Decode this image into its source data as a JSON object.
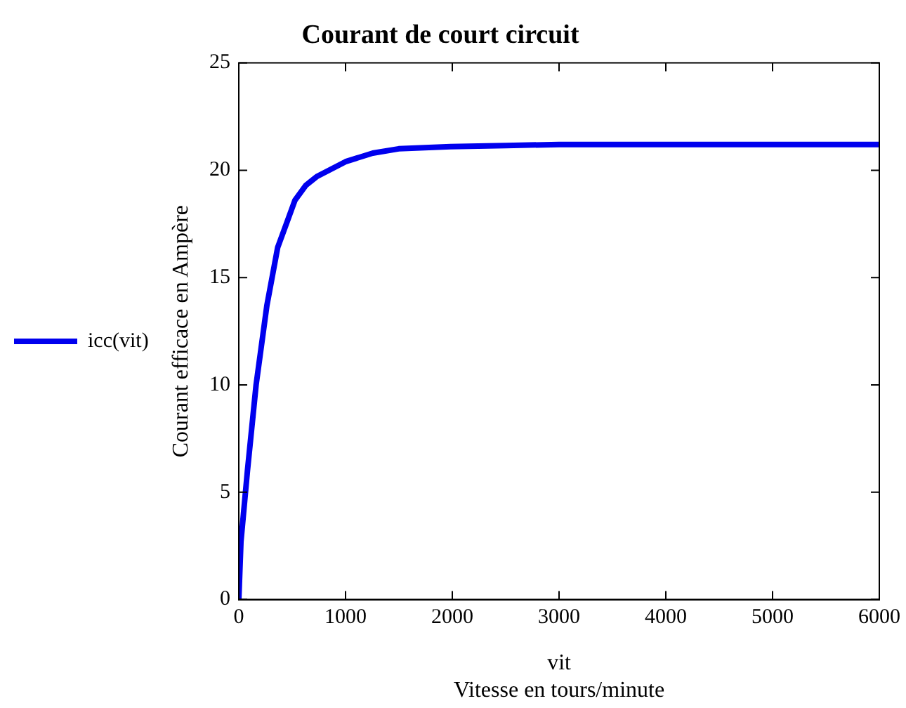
{
  "chart_data": {
    "type": "line",
    "title": "Courant de court circuit",
    "xlabel": "vit",
    "ylabel": "Courant efficace en Ampère",
    "annotations": [
      "Vitesse en tours/minute"
    ],
    "x": [
      0,
      20,
      81,
      162,
      263,
      364,
      445,
      526,
      628,
      729,
      1000,
      1255,
      1498,
      1984,
      2500,
      3000,
      4000,
      5000,
      6000
    ],
    "series": [
      {
        "name": "icc(vit)",
        "color": "#0000ee",
        "values": [
          0,
          2.7,
          6.0,
          10.0,
          13.7,
          16.4,
          17.5,
          18.6,
          19.3,
          19.7,
          20.4,
          20.8,
          21.0,
          21.1,
          21.15,
          21.2,
          21.2,
          21.2,
          21.2
        ]
      }
    ],
    "xlim": [
      0,
      6000
    ],
    "xticks": [
      0,
      1000,
      2000,
      3000,
      4000,
      5000,
      6000
    ],
    "ylim": [
      0,
      25
    ],
    "yticks": [
      0,
      5,
      10,
      15,
      20,
      25
    ],
    "grid": false,
    "legend": "left",
    "marker": "none",
    "line_style": "solid"
  }
}
